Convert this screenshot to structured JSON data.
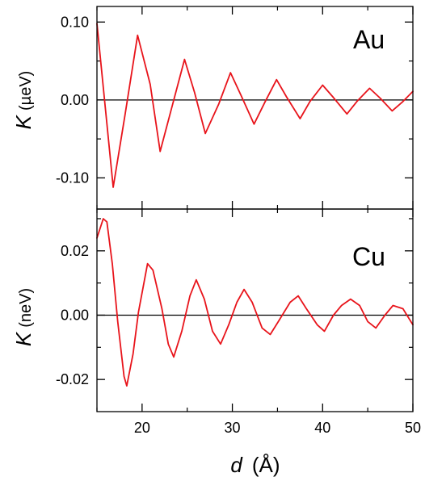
{
  "chart_data": [
    {
      "type": "line",
      "panel_label": "Au",
      "ylabel": {
        "symbol": "K",
        "unit": "(µeV)"
      },
      "xlim": [
        15,
        50
      ],
      "ylim": [
        -0.14,
        0.12
      ],
      "yticks_major": [
        -0.1,
        0.0,
        0.1
      ],
      "ytick_labels": [
        "-0.10",
        "0.00",
        "0.10"
      ],
      "yticks_minor": [
        -0.05,
        0.05
      ],
      "zero_line": true,
      "grid": false,
      "color": "#e8141b",
      "series": [
        {
          "x": [
            15.0,
            16.8,
            18.1,
            19.5,
            20.9,
            22.0,
            23.4,
            24.7,
            25.8,
            27.0,
            28.5,
            29.8,
            31.0,
            32.4,
            33.6,
            34.9,
            36.0,
            37.5,
            38.6,
            40.0,
            41.2,
            42.7,
            43.8,
            45.2,
            46.4,
            47.7,
            48.9,
            50.0
          ],
          "y": [
            0.098,
            -0.112,
            -0.02,
            0.083,
            0.02,
            -0.066,
            -0.005,
            0.052,
            0.01,
            -0.043,
            -0.005,
            0.035,
            0.005,
            -0.031,
            -0.003,
            0.026,
            0.004,
            -0.024,
            -0.002,
            0.019,
            0.003,
            -0.018,
            -0.002,
            0.015,
            0.002,
            -0.014,
            -0.002,
            0.011
          ]
        }
      ]
    },
    {
      "type": "line",
      "panel_label": "Cu",
      "ylabel": {
        "symbol": "K",
        "unit": "(neV)"
      },
      "xlabel": {
        "symbol": "d",
        "unit": "(Å)"
      },
      "xlim": [
        15,
        50
      ],
      "ylim": [
        -0.03,
        0.033
      ],
      "xticks_major": [
        20,
        30,
        40,
        50
      ],
      "xtick_labels": [
        "20",
        "30",
        "40",
        "50"
      ],
      "xticks_minor": [
        15,
        25,
        35,
        45
      ],
      "yticks_major": [
        -0.02,
        0.0,
        0.02
      ],
      "ytick_labels": [
        "-0.02",
        "0.00",
        "0.02"
      ],
      "yticks_minor": [
        -0.01,
        0.01,
        0.03
      ],
      "zero_line": true,
      "grid": false,
      "color": "#e8141b",
      "series": [
        {
          "x": [
            15.0,
            15.7,
            16.1,
            16.7,
            17.3,
            18.0,
            18.3,
            19.0,
            19.6,
            20.6,
            21.2,
            22.2,
            22.9,
            23.5,
            24.4,
            25.3,
            26.0,
            26.9,
            27.8,
            28.7,
            29.6,
            30.5,
            31.3,
            32.2,
            33.3,
            34.2,
            35.1,
            36.4,
            37.3,
            38.2,
            39.4,
            40.2,
            41.2,
            42.1,
            43.1,
            44.1,
            45.0,
            45.9,
            46.9,
            47.8,
            48.9,
            50.0
          ],
          "y": [
            0.024,
            0.03,
            0.029,
            0.016,
            -0.002,
            -0.019,
            -0.022,
            -0.012,
            0.001,
            0.016,
            0.014,
            0.002,
            -0.009,
            -0.013,
            -0.005,
            0.006,
            0.011,
            0.005,
            -0.005,
            -0.009,
            -0.003,
            0.004,
            0.008,
            0.004,
            -0.004,
            -0.006,
            -0.002,
            0.004,
            0.006,
            0.002,
            -0.003,
            -0.005,
            0.0,
            0.003,
            0.005,
            0.003,
            -0.002,
            -0.004,
            0.0,
            0.003,
            0.002,
            -0.003
          ]
        }
      ]
    }
  ]
}
